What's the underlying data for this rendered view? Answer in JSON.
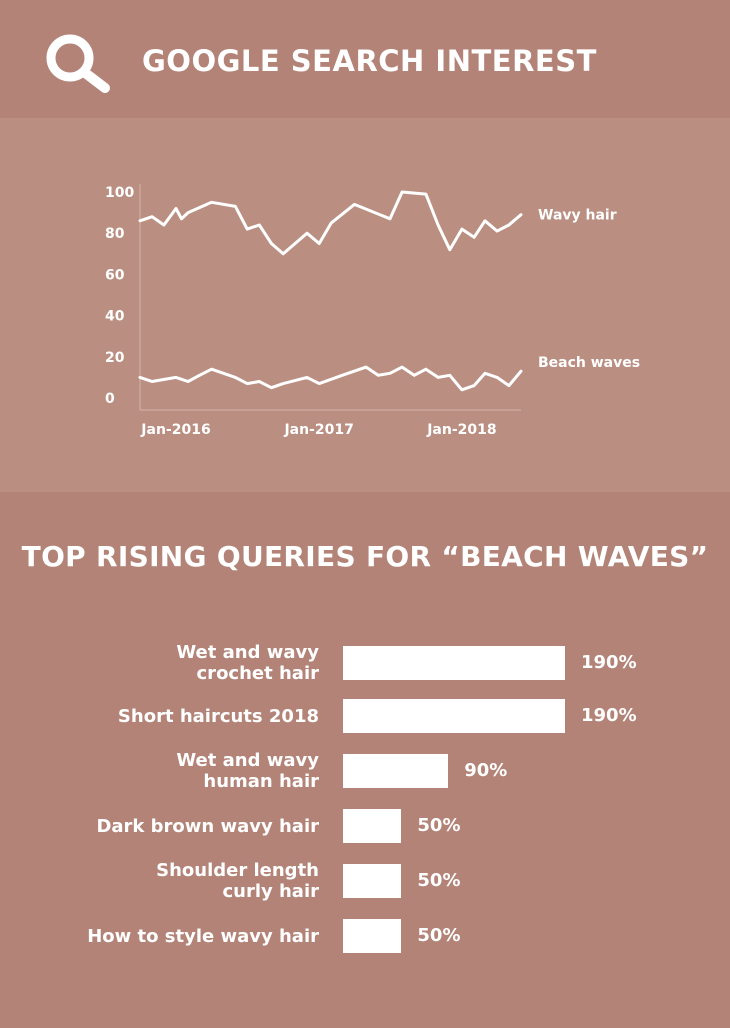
{
  "header": {
    "title": "GOOGLE SEARCH INTEREST",
    "icon": "search-icon"
  },
  "colors": {
    "header_bg": "#b38377",
    "chart_bg": "#ba8f82",
    "bottom_bg": "#b38377",
    "foreground": "#ffffff"
  },
  "chart_data": [
    {
      "type": "line",
      "title": "",
      "xlabel": "",
      "ylabel": "",
      "ylim": [
        0,
        100
      ],
      "yticks": [
        "100",
        "80",
        "60",
        "40",
        "20",
        "0"
      ],
      "xticks": [
        "Jan-2016",
        "Jan-2017",
        "Jan-2018"
      ],
      "grid": false,
      "series": [
        {
          "name": "Wavy hair",
          "x": [
            "2015-10-01",
            "2015-11-01",
            "2015-12-01",
            "2016-01-01",
            "2016-01-15",
            "2016-02-01",
            "2016-04-01",
            "2016-06-01",
            "2016-07-01",
            "2016-08-01",
            "2016-09-01",
            "2016-10-01",
            "2016-12-01",
            "2017-01-01",
            "2017-02-01",
            "2017-04-01",
            "2017-07-01",
            "2017-08-01",
            "2017-10-01",
            "2017-11-01",
            "2017-12-01",
            "2018-01-01",
            "2018-02-01",
            "2018-03-01",
            "2018-04-01",
            "2018-05-01",
            "2018-06-01"
          ],
          "values": [
            86,
            88,
            84,
            92,
            87,
            90,
            95,
            93,
            82,
            84,
            75,
            70,
            80,
            75,
            85,
            94,
            87,
            100,
            99,
            84,
            72,
            82,
            78,
            86,
            81,
            84,
            89
          ]
        },
        {
          "name": "Beach waves",
          "x": [
            "2015-10-01",
            "2015-11-01",
            "2016-01-01",
            "2016-02-01",
            "2016-03-01",
            "2016-04-01",
            "2016-06-01",
            "2016-07-01",
            "2016-08-01",
            "2016-09-01",
            "2016-10-01",
            "2016-12-01",
            "2017-01-01",
            "2017-03-01",
            "2017-05-01",
            "2017-06-01",
            "2017-07-01",
            "2017-08-01",
            "2017-09-01",
            "2017-10-01",
            "2017-11-01",
            "2017-12-01",
            "2018-01-01",
            "2018-02-01",
            "2018-03-01",
            "2018-04-01",
            "2018-05-01",
            "2018-06-01"
          ],
          "values": [
            10,
            8,
            10,
            8,
            11,
            14,
            10,
            7,
            8,
            5,
            7,
            10,
            7,
            11,
            15,
            11,
            12,
            15,
            11,
            14,
            10,
            11,
            4,
            6,
            12,
            10,
            6,
            13
          ]
        }
      ]
    },
    {
      "type": "bar",
      "title": "TOP RISING QUERIES FOR “BEACH WAVES”",
      "xlabel": "",
      "ylabel": "",
      "orientation": "horizontal",
      "categories": [
        "Wet and wavy\ncrochet hair",
        "Short haircuts 2018",
        "Wet and wavy\nhuman hair",
        "Dark brown wavy hair",
        "Shoulder length\ncurly hair",
        "How to style wavy hair"
      ],
      "values": [
        190,
        190,
        90,
        50,
        50,
        50
      ],
      "value_labels": [
        "190%",
        "190%",
        "90%",
        "50%",
        "50%",
        "50%"
      ]
    }
  ]
}
